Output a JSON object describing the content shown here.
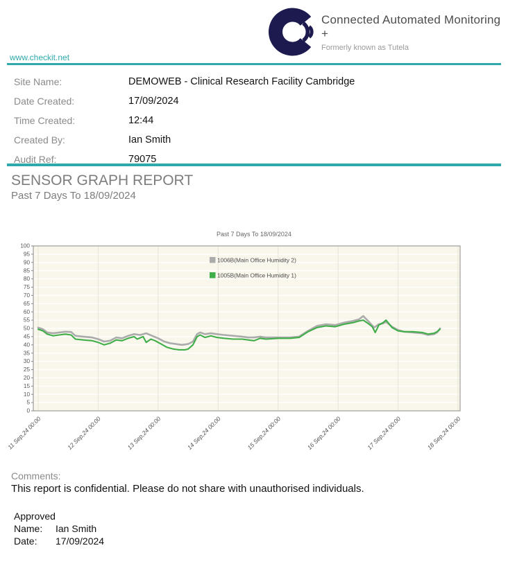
{
  "header": {
    "brand_title": "Connected Automated Monitoring +",
    "brand_subtitle": "Formerly known as Tutela",
    "website": "www.checkit.net",
    "logo_color": "#1c1a4e"
  },
  "meta": {
    "rows": [
      {
        "label": "Site Name:",
        "value": "DEMOWEB - Clinical Research Facility Cambridge"
      },
      {
        "label": "Date Created:",
        "value": "17/09/2024"
      },
      {
        "label": "Time Created:",
        "value": "12:44"
      },
      {
        "label": "Created By:",
        "value": "Ian Smith"
      },
      {
        "label": "Audit Ref:",
        "value": "79075"
      }
    ]
  },
  "report": {
    "title": "SENSOR GRAPH REPORT",
    "subtitle": "Past 7 Days To 18/09/2024"
  },
  "chart_data": {
    "type": "line",
    "title": "Past 7 Days To 18/09/2024",
    "xlabel": "",
    "ylabel": "",
    "ylim": [
      0,
      100
    ],
    "ytick_step": 5,
    "grid": true,
    "legend_position": "inside-top-center",
    "plot_bg": "#f9f7ec",
    "h_grid_color": "#ffffff",
    "v_grid_color": "#e7e4d5",
    "frame_color": "#9d9d96",
    "x_unit": "days since 11 Sep 2024 00:00",
    "xtick_labels": [
      "11 Sep,24 00:00",
      "12 Sep,24 00:00",
      "13 Sep,24 00:00",
      "14 Sep,24 00:00",
      "15 Sep,24 00:00",
      "16 Sep,24 00:00",
      "17 Sep,24 00:00",
      "18 Sep,24 00:00"
    ],
    "series": [
      {
        "name": "1006B(Main Office Humidity 2)",
        "color": "#ababab",
        "width": 2.6,
        "points": [
          [
            0,
            50.5
          ],
          [
            0.08,
            49.5
          ],
          [
            0.15,
            47.5
          ],
          [
            0.25,
            47
          ],
          [
            0.35,
            47.5
          ],
          [
            0.45,
            48
          ],
          [
            0.55,
            47.8
          ],
          [
            0.62,
            45.5
          ],
          [
            0.75,
            45
          ],
          [
            0.9,
            44.5
          ],
          [
            1.0,
            43.5
          ],
          [
            1.1,
            42
          ],
          [
            1.2,
            42.5
          ],
          [
            1.3,
            44.5
          ],
          [
            1.4,
            44
          ],
          [
            1.5,
            45.5
          ],
          [
            1.6,
            46.5
          ],
          [
            1.7,
            46
          ],
          [
            1.8,
            47
          ],
          [
            1.9,
            45.5
          ],
          [
            2.0,
            44
          ],
          [
            2.1,
            42
          ],
          [
            2.2,
            41
          ],
          [
            2.3,
            40.5
          ],
          [
            2.4,
            40
          ],
          [
            2.5,
            40.5
          ],
          [
            2.58,
            42
          ],
          [
            2.65,
            46.5
          ],
          [
            2.7,
            47.5
          ],
          [
            2.78,
            46.5
          ],
          [
            2.88,
            47
          ],
          [
            2.98,
            46.5
          ],
          [
            3.1,
            46
          ],
          [
            3.25,
            45.5
          ],
          [
            3.4,
            45
          ],
          [
            3.5,
            44.5
          ],
          [
            3.6,
            44.5
          ],
          [
            3.7,
            45
          ],
          [
            3.8,
            44.5
          ],
          [
            4.0,
            44.5
          ],
          [
            4.2,
            44.5
          ],
          [
            4.35,
            45
          ],
          [
            4.5,
            48.5
          ],
          [
            4.65,
            51.5
          ],
          [
            4.8,
            52.5
          ],
          [
            4.95,
            52
          ],
          [
            5.1,
            53.5
          ],
          [
            5.25,
            54.5
          ],
          [
            5.35,
            55.5
          ],
          [
            5.42,
            57.5
          ],
          [
            5.5,
            54.5
          ],
          [
            5.6,
            50.5
          ],
          [
            5.68,
            52.5
          ],
          [
            5.75,
            53
          ],
          [
            5.8,
            54
          ],
          [
            5.9,
            51
          ],
          [
            6.0,
            49
          ],
          [
            6.1,
            48
          ],
          [
            6.25,
            47.5
          ],
          [
            6.4,
            47
          ],
          [
            6.5,
            46
          ],
          [
            6.6,
            46.5
          ],
          [
            6.65,
            47.5
          ],
          [
            6.7,
            50
          ]
        ]
      },
      {
        "name": "1005B(Main Office Humidity 1)",
        "color": "#3fae49",
        "width": 2.1,
        "points": [
          [
            0,
            49.5
          ],
          [
            0.08,
            48.5
          ],
          [
            0.15,
            46.5
          ],
          [
            0.25,
            45.5
          ],
          [
            0.35,
            46
          ],
          [
            0.45,
            46.5
          ],
          [
            0.55,
            46
          ],
          [
            0.62,
            43.5
          ],
          [
            0.75,
            43
          ],
          [
            0.9,
            42.5
          ],
          [
            1.0,
            41.5
          ],
          [
            1.1,
            40
          ],
          [
            1.2,
            41
          ],
          [
            1.3,
            43
          ],
          [
            1.4,
            42.5
          ],
          [
            1.5,
            44
          ],
          [
            1.6,
            45
          ],
          [
            1.65,
            43.5
          ],
          [
            1.75,
            45
          ],
          [
            1.8,
            41.5
          ],
          [
            1.88,
            43.5
          ],
          [
            1.95,
            42.5
          ],
          [
            2.05,
            40.5
          ],
          [
            2.15,
            38.5
          ],
          [
            2.25,
            37.5
          ],
          [
            2.35,
            37
          ],
          [
            2.45,
            37
          ],
          [
            2.5,
            37.5
          ],
          [
            2.58,
            40
          ],
          [
            2.65,
            45
          ],
          [
            2.7,
            46
          ],
          [
            2.78,
            44.5
          ],
          [
            2.88,
            45.5
          ],
          [
            2.98,
            44.5
          ],
          [
            3.1,
            44
          ],
          [
            3.25,
            43.5
          ],
          [
            3.4,
            43.5
          ],
          [
            3.5,
            43
          ],
          [
            3.6,
            42.5
          ],
          [
            3.7,
            44
          ],
          [
            3.8,
            43.5
          ],
          [
            4.0,
            44
          ],
          [
            4.2,
            44
          ],
          [
            4.35,
            44.5
          ],
          [
            4.5,
            48
          ],
          [
            4.65,
            50.5
          ],
          [
            4.8,
            51.5
          ],
          [
            4.95,
            51
          ],
          [
            5.1,
            52.5
          ],
          [
            5.25,
            53.5
          ],
          [
            5.35,
            54.5
          ],
          [
            5.42,
            55
          ],
          [
            5.5,
            53
          ],
          [
            5.57,
            51
          ],
          [
            5.62,
            47.5
          ],
          [
            5.68,
            52
          ],
          [
            5.75,
            53.5
          ],
          [
            5.8,
            55
          ],
          [
            5.9,
            50.5
          ],
          [
            6.0,
            48.5
          ],
          [
            6.1,
            48
          ],
          [
            6.25,
            48
          ],
          [
            6.4,
            47.5
          ],
          [
            6.5,
            46.5
          ],
          [
            6.6,
            47
          ],
          [
            6.65,
            48
          ],
          [
            6.7,
            49.5
          ]
        ]
      }
    ]
  },
  "comments": {
    "label": "Comments:",
    "text": "This report is confidential. Please do not share with unauthorised individuals."
  },
  "approval": {
    "heading": "Approved",
    "name_label": "Name:",
    "name_value": "Ian Smith",
    "date_label": "Date:",
    "date_value": "17/09/2024"
  },
  "colors": {
    "teal_accent": "#2fa9ab",
    "logo_navy": "#1c1a4e",
    "label_gray": "#8a8a8a",
    "heading_gray": "#7d7d7d"
  }
}
